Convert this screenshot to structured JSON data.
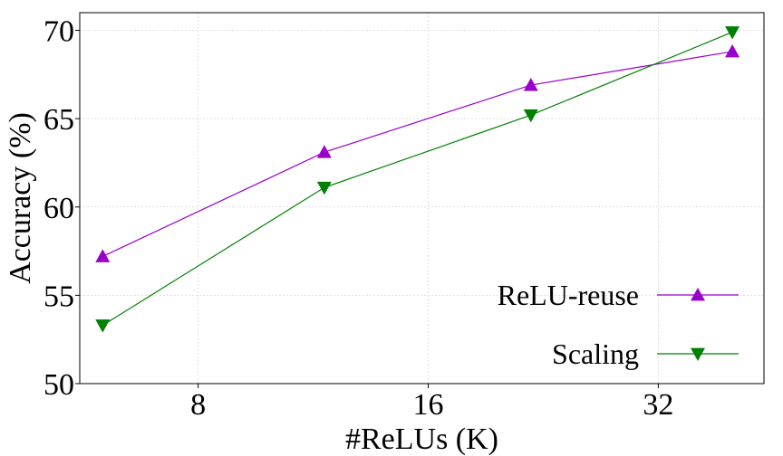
{
  "chart_data": {
    "type": "line",
    "xlabel": "#ReLUs (K)",
    "ylabel": "Accuracy (%)",
    "x_scale": "log2",
    "xlim": [
      5.6,
      44
    ],
    "ylim": [
      50,
      71
    ],
    "x_ticks": [
      8,
      16,
      32
    ],
    "x_tick_labels": [
      "8",
      "16",
      "32"
    ],
    "y_ticks": [
      50,
      55,
      60,
      65,
      70
    ],
    "y_tick_labels": [
      "50",
      "55",
      "60",
      "65",
      "70"
    ],
    "grid": true,
    "legend_position": "bottom-right",
    "series": [
      {
        "name": "ReLU-reuse",
        "color": "#9900cc",
        "marker": "triangle-up",
        "x": [
          6.0,
          11.7,
          21.8,
          40.0
        ],
        "y": [
          57.2,
          63.1,
          66.9,
          68.8
        ]
      },
      {
        "name": "Scaling",
        "color": "#008000",
        "marker": "triangle-down",
        "x": [
          6.0,
          11.7,
          21.8,
          40.0
        ],
        "y": [
          53.3,
          61.1,
          65.2,
          69.9
        ]
      }
    ]
  }
}
